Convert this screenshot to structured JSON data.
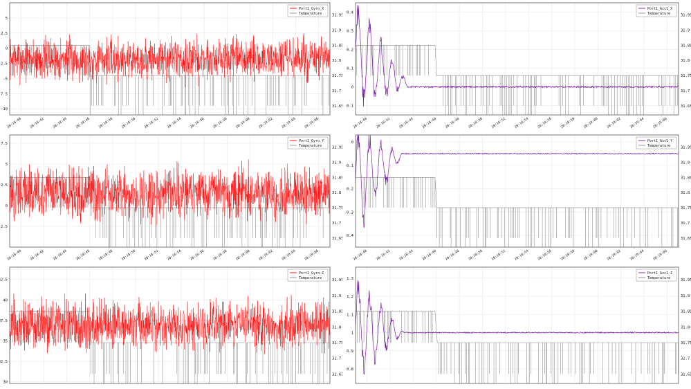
{
  "colors": {
    "gyro": "#ff0000",
    "acc": "#7a1fa2",
    "temperature": "#8a8a8a"
  },
  "chart_data": [
    {
      "type": "line",
      "legend": [
        "Port1_Gyro_X",
        "Temperature"
      ],
      "legend_position": "top-right",
      "grid": true,
      "left_ticks": [
        "5",
        "2.5",
        "0",
        "-2.5",
        "-5",
        "-7.5",
        "-10"
      ],
      "right_ticks": [
        "31.95",
        "31.9",
        "31.85",
        "31.8",
        "31.75",
        "31.7",
        "31.65"
      ],
      "x_ticks": [
        "20:18:40",
        "20:18:42",
        "20:18:44",
        "20:18:46",
        "20:18:48",
        "20:18:50",
        "20:18:52",
        "20:18:54",
        "20:18:56",
        "20:18:58",
        "20:19:00",
        "20:19:02",
        "20:19:04",
        "20:19:06"
      ],
      "y_range": [
        -11,
        7.5
      ],
      "y2_range": [
        31.62,
        31.99
      ],
      "series": [
        {
          "name": "Port1_Gyro_X",
          "axis": "left",
          "pattern": "noise",
          "mean": -1.8,
          "amplitude": 3.6
        },
        {
          "name": "Temperature",
          "axis": "right",
          "pattern": "steps",
          "levels": [
            31.85,
            31.75,
            31.65
          ],
          "change_at": 0.25
        }
      ]
    },
    {
      "type": "line",
      "legend": [
        "Port1_Acc1_X",
        "Temperature"
      ],
      "legend_position": "top-right",
      "grid": true,
      "left_ticks": [
        "0.4",
        "0.3",
        "0.2",
        "0.1",
        "0",
        "-0.1"
      ],
      "right_ticks": [
        "31.95",
        "31.9",
        "31.85",
        "31.8",
        "31.75",
        "31.7",
        "31.65"
      ],
      "x_ticks": [
        "20:18:40",
        "20:18:42",
        "20:18:44",
        "20:18:46",
        "20:18:48",
        "20:18:50",
        "20:18:52",
        "20:18:54",
        "20:18:56",
        "20:18:58",
        "20:19:00",
        "20:19:02",
        "20:19:04",
        "20:19:06"
      ],
      "y_range": [
        -0.15,
        0.45
      ],
      "y2_range": [
        31.62,
        31.99
      ],
      "series": [
        {
          "name": "Port1_Acc1_X",
          "axis": "left",
          "pattern": "settle",
          "start": 0.35,
          "settle": 0.0,
          "settle_at": 0.17,
          "noise": 0.004
        },
        {
          "name": "Temperature",
          "axis": "right",
          "pattern": "steps",
          "levels": [
            31.85,
            31.75,
            31.65
          ],
          "change_at": 0.25
        }
      ]
    },
    {
      "type": "line",
      "legend": [
        "Port1_Gyro_Y",
        "Temperature"
      ],
      "legend_position": "top-right",
      "grid": true,
      "left_ticks": [
        "7.5",
        "5",
        "2.5",
        "0",
        "-2.5"
      ],
      "right_ticks": [
        "31.95",
        "31.9",
        "31.85",
        "31.8",
        "31.75",
        "31.7",
        "31.65"
      ],
      "x_ticks": [
        "20:18:40",
        "20:18:42",
        "20:18:44",
        "20:18:46",
        "20:18:48",
        "20:18:50",
        "20:18:52",
        "20:18:54",
        "20:18:56",
        "20:18:58",
        "20:19:00",
        "20:19:02",
        "20:19:04",
        "20:19:06"
      ],
      "y_range": [
        -5,
        8.5
      ],
      "y2_range": [
        31.62,
        31.99
      ],
      "series": [
        {
          "name": "Port1_Gyro_Y",
          "axis": "left",
          "pattern": "noise",
          "mean": 1.5,
          "amplitude": 3.2
        },
        {
          "name": "Temperature",
          "axis": "right",
          "pattern": "steps",
          "levels": [
            31.85,
            31.75,
            31.65
          ],
          "change_at": 0.25
        }
      ]
    },
    {
      "type": "line",
      "legend": [
        "Port1_Acc1_Y",
        "Temperature"
      ],
      "legend_position": "top-right",
      "grid": true,
      "left_ticks": [
        "0",
        "-0.1",
        "-0.2",
        "-0.3",
        "-0.4"
      ],
      "right_ticks": [
        "31.95",
        "31.9",
        "31.85",
        "31.8",
        "31.75",
        "31.7",
        "31.65"
      ],
      "x_ticks": [
        "20:18:40",
        "20:18:42",
        "20:18:44",
        "20:18:46",
        "20:18:48",
        "20:18:50",
        "20:18:52",
        "20:18:54",
        "20:18:56",
        "20:18:58",
        "20:19:00",
        "20:19:02",
        "20:19:04",
        "20:19:06"
      ],
      "y_range": [
        -0.45,
        0.03
      ],
      "y2_range": [
        31.62,
        31.99
      ],
      "series": [
        {
          "name": "Port1_Acc1_Y",
          "axis": "left",
          "pattern": "settle",
          "start": -0.3,
          "settle": -0.05,
          "settle_at": 0.15,
          "noise": 0.002
        },
        {
          "name": "Temperature",
          "axis": "right",
          "pattern": "steps",
          "levels": [
            31.85,
            31.75,
            31.65
          ],
          "change_at": 0.25
        }
      ]
    },
    {
      "type": "line",
      "legend": [
        "Port1_Gyro_Z",
        "Temperature"
      ],
      "legend_position": "top-right",
      "grid": true,
      "left_ticks": [
        "42.5",
        "40",
        "37.5",
        "35",
        "32.5",
        "30"
      ],
      "right_ticks": [
        "31.95",
        "31.9",
        "31.85",
        "31.8",
        "31.75",
        "31.7",
        "31.65"
      ],
      "x_ticks": [],
      "y_range": [
        29.8,
        44
      ],
      "y2_range": [
        31.62,
        31.99
      ],
      "series": [
        {
          "name": "Port1_Gyro_Z",
          "axis": "left",
          "pattern": "noise",
          "mean": 37,
          "amplitude": 3.0
        },
        {
          "name": "Temperature",
          "axis": "right",
          "pattern": "steps",
          "levels": [
            31.85,
            31.75,
            31.65
          ],
          "change_at": 0.25
        }
      ]
    },
    {
      "type": "line",
      "legend": [
        "Port1_Acc1_Z",
        "Temperature"
      ],
      "legend_position": "top-right",
      "grid": true,
      "left_ticks": [
        "1.3",
        "1.2",
        "1.1",
        "1",
        "0.9",
        "0.8"
      ],
      "right_ticks": [
        "31.95",
        "31.9",
        "31.85",
        "31.8",
        "31.75",
        "31.7",
        "31.65"
      ],
      "x_ticks": [],
      "y_range": [
        0.72,
        1.36
      ],
      "y2_range": [
        31.62,
        31.99
      ],
      "series": [
        {
          "name": "Port1_Acc1_Z",
          "axis": "left",
          "pattern": "settle",
          "start": 1.05,
          "settle": 1.0,
          "settle_at": 0.15,
          "noise": 0.003
        },
        {
          "name": "Temperature",
          "axis": "right",
          "pattern": "steps",
          "levels": [
            31.85,
            31.75,
            31.65
          ],
          "change_at": 0.25
        }
      ]
    }
  ]
}
